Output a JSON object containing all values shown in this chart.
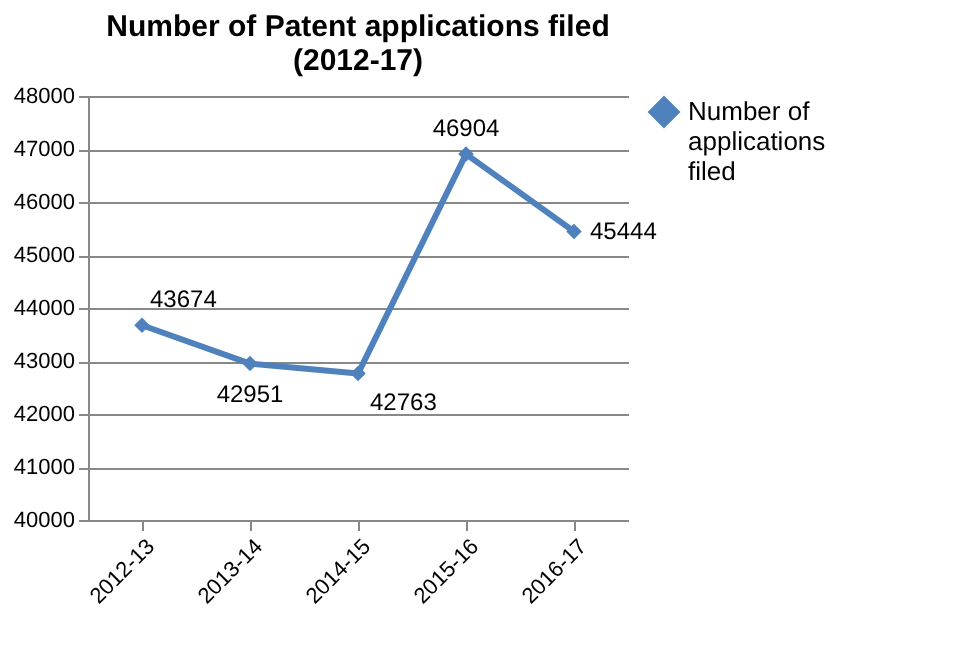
{
  "chart_data": {
    "type": "line",
    "title": "Number of Patent applications filed (2012-17)",
    "categories": [
      "2012-13",
      "2013-14",
      "2014-15",
      "2015-16",
      "2016-17"
    ],
    "series": [
      {
        "name": "Number of applications filed",
        "color": "#4f81bd",
        "values": [
          43674,
          42951,
          42763,
          46904,
          45444
        ]
      }
    ],
    "ylim": [
      40000,
      48000
    ],
    "yticks": [
      40000,
      41000,
      42000,
      43000,
      44000,
      45000,
      46000,
      47000,
      48000
    ],
    "grid": "y",
    "legend": "right",
    "marker": "diamond",
    "line_style": "solid",
    "data_labels": true
  }
}
